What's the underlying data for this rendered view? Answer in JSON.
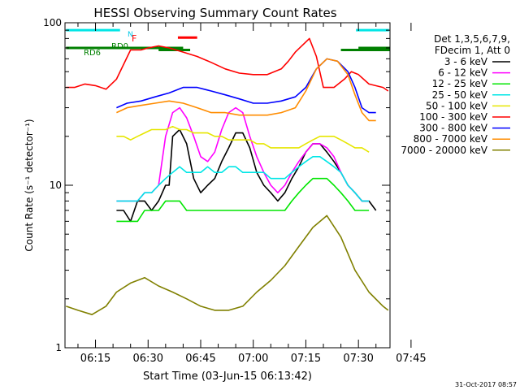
{
  "chart_data": {
    "type": "line",
    "title": "HESSI Observing Summary Count Rates",
    "xlabel": "Start Time (03-Jun-15 06:13:42)",
    "ylabel": "Count Rate (s⁻¹ detector⁻¹)",
    "y_scale": "log",
    "ylim": [
      1,
      100
    ],
    "xlim_minutes": [
      6.3,
      99.0
    ],
    "x_ticks": [
      {
        "label": "06:15",
        "min": 15
      },
      {
        "label": "06:30",
        "min": 30
      },
      {
        "label": "06:45",
        "min": 45
      },
      {
        "label": "07:00",
        "min": 60
      },
      {
        "label": "07:15",
        "min": 75
      },
      {
        "label": "07:30",
        "min": 90
      },
      {
        "label": "07:45",
        "min": 105
      }
    ],
    "y_ticks": [
      {
        "label": "1",
        "value": 1
      },
      {
        "label": "10",
        "value": 10
      },
      {
        "label": "100",
        "value": 100
      }
    ],
    "legend_header": [
      "Det 1,3,5,6,7,9,",
      "FDecim 1, Att 0"
    ],
    "legend_position": "right",
    "flag_labels": {
      "N": "N",
      "F": "F",
      "RD0": "RD0",
      "RD6": "RD6"
    },
    "flags": {
      "N": {
        "color": "#00e6e6",
        "segments": [
          [
            6.6,
            22.0
          ],
          [
            89.3,
            98.7
          ]
        ],
        "value": 90
      },
      "F": {
        "color": "#ff0000",
        "segments": [
          [
            38.5,
            44.0
          ]
        ],
        "value": 81
      },
      "RD0": {
        "color": "#008000",
        "segments": [
          [
            6.6,
            40.0
          ],
          [
            90.0,
            99.0
          ]
        ],
        "value": 70
      },
      "RD6": {
        "color": "#008000",
        "segments": [
          [
            33.0,
            42.0
          ],
          [
            85.0,
            99.0
          ]
        ],
        "value": 68
      }
    },
    "series": [
      {
        "name": "3 - 6 keV",
        "color": "#000000",
        "x": [
          21,
          23,
          25,
          27,
          29,
          31,
          33,
          35,
          36,
          37,
          39,
          41,
          43,
          45,
          47,
          49,
          51,
          53,
          55,
          57,
          59,
          61,
          63,
          65,
          67,
          69,
          71,
          73,
          75,
          77,
          79,
          81,
          83,
          85,
          87,
          89,
          91,
          93,
          95
        ],
        "values": [
          7,
          7,
          6,
          8,
          8,
          7,
          8,
          10,
          10,
          20,
          22,
          18,
          11,
          9,
          10,
          11,
          14,
          17,
          21,
          21,
          17,
          12,
          10,
          9,
          8,
          9,
          11,
          13,
          16,
          18,
          18,
          16,
          14,
          12,
          10,
          9,
          8,
          8,
          7
        ]
      },
      {
        "name": "6 - 12 keV",
        "color": "#ff00ff",
        "x": [
          21,
          23,
          25,
          27,
          29,
          31,
          33,
          35,
          37,
          39,
          41,
          43,
          45,
          47,
          49,
          51,
          53,
          55,
          57,
          59,
          61,
          63,
          65,
          67,
          69,
          71,
          73,
          75,
          77,
          79,
          81,
          83,
          85,
          87,
          89,
          91,
          93
        ],
        "values": [
          8,
          8,
          8,
          8,
          9,
          9,
          10,
          20,
          28,
          30,
          26,
          20,
          15,
          14,
          16,
          22,
          28,
          30,
          28,
          20,
          15,
          12,
          10,
          9,
          10,
          12,
          14,
          16,
          18,
          18,
          17,
          15,
          12,
          10,
          9,
          8,
          8
        ]
      },
      {
        "name": "12 - 25 keV",
        "color": "#00e600",
        "x": [
          21,
          23,
          25,
          27,
          29,
          31,
          33,
          35,
          37,
          39,
          41,
          43,
          45,
          47,
          49,
          51,
          53,
          55,
          57,
          59,
          61,
          63,
          65,
          67,
          69,
          71,
          73,
          75,
          77,
          79,
          81,
          83,
          85,
          87,
          89,
          91,
          93
        ],
        "values": [
          6,
          6,
          6,
          6,
          7,
          7,
          7,
          8,
          8,
          8,
          7,
          7,
          7,
          7,
          7,
          7,
          7,
          7,
          7,
          7,
          7,
          7,
          7,
          7,
          7,
          8,
          9,
          10,
          11,
          11,
          11,
          10,
          9,
          8,
          7,
          7,
          7
        ]
      },
      {
        "name": "25 - 50 keV",
        "color": "#00e6e6",
        "x": [
          21,
          23,
          25,
          27,
          29,
          31,
          33,
          35,
          37,
          39,
          41,
          43,
          45,
          47,
          49,
          51,
          53,
          55,
          57,
          59,
          61,
          63,
          65,
          67,
          69,
          71,
          73,
          75,
          77,
          79,
          81,
          83,
          85,
          87,
          89,
          91,
          93
        ],
        "values": [
          8,
          8,
          8,
          8,
          9,
          9,
          10,
          11,
          12,
          13,
          12,
          12,
          12,
          13,
          12,
          12,
          13,
          13,
          12,
          12,
          12,
          12,
          11,
          11,
          11,
          12,
          13,
          14,
          15,
          15,
          14,
          13,
          12,
          10,
          9,
          8,
          8
        ]
      },
      {
        "name": "50 - 100 keV",
        "color": "#e6e600",
        "x": [
          21,
          23,
          25,
          27,
          29,
          31,
          33,
          35,
          37,
          39,
          41,
          43,
          45,
          47,
          49,
          51,
          53,
          55,
          57,
          59,
          61,
          63,
          65,
          67,
          69,
          71,
          73,
          75,
          77,
          79,
          81,
          83,
          85,
          87,
          89,
          91,
          93
        ],
        "values": [
          20,
          20,
          19,
          20,
          21,
          22,
          22,
          22,
          23,
          22,
          22,
          21,
          21,
          21,
          20,
          20,
          19,
          19,
          19,
          19,
          18,
          18,
          17,
          17,
          17,
          17,
          17,
          18,
          19,
          20,
          20,
          20,
          19,
          18,
          17,
          17,
          16
        ]
      },
      {
        "name": "100 - 300 keV",
        "color": "#ff0000",
        "x": [
          6.6,
          9,
          12,
          15,
          18,
          21,
          25,
          28,
          30,
          33,
          36,
          40,
          44,
          48,
          52,
          56,
          60,
          64,
          68,
          70,
          72,
          76,
          78,
          80,
          83,
          86,
          88,
          90,
          93,
          97,
          98.5
        ],
        "values": [
          40,
          40,
          42,
          41,
          39,
          45,
          68,
          68,
          70,
          72,
          70,
          66,
          62,
          57,
          52,
          49,
          48,
          48,
          52,
          58,
          66,
          80,
          62,
          40,
          40,
          45,
          50,
          48,
          42,
          40,
          38
        ]
      },
      {
        "name": "300 - 800 keV",
        "color": "#0000ff",
        "x": [
          21,
          24,
          28,
          32,
          36,
          40,
          44,
          48,
          52,
          56,
          60,
          64,
          68,
          72,
          75,
          78,
          81,
          84,
          87,
          89,
          91,
          93,
          95
        ],
        "values": [
          30,
          32,
          33,
          35,
          37,
          40,
          40,
          38,
          36,
          34,
          32,
          32,
          33,
          35,
          40,
          52,
          60,
          58,
          50,
          40,
          30,
          28,
          28
        ]
      },
      {
        "name": "800 - 7000 keV",
        "color": "#ff8c00",
        "x": [
          21,
          24,
          28,
          32,
          36,
          40,
          44,
          48,
          52,
          56,
          60,
          64,
          68,
          72,
          75,
          78,
          81,
          84,
          87,
          89,
          91,
          93,
          95
        ],
        "values": [
          28,
          30,
          31,
          32,
          33,
          32,
          30,
          28,
          28,
          27,
          27,
          27,
          28,
          30,
          38,
          52,
          60,
          58,
          48,
          36,
          28,
          25,
          25
        ]
      },
      {
        "name": "7000 - 20000 keV",
        "color": "#808000",
        "x": [
          6.6,
          10,
          14,
          18,
          21,
          25,
          29,
          33,
          37,
          41,
          45,
          49,
          53,
          57,
          61,
          65,
          69,
          73,
          77,
          81,
          85,
          89,
          93,
          97,
          98.5
        ],
        "values": [
          1.8,
          1.7,
          1.6,
          1.8,
          2.2,
          2.5,
          2.7,
          2.4,
          2.2,
          2.0,
          1.8,
          1.7,
          1.7,
          1.8,
          2.2,
          2.6,
          3.2,
          4.2,
          5.5,
          6.5,
          4.8,
          3.0,
          2.2,
          1.8,
          1.7
        ]
      }
    ],
    "footer_date": "31-Oct-2017 08:57"
  }
}
